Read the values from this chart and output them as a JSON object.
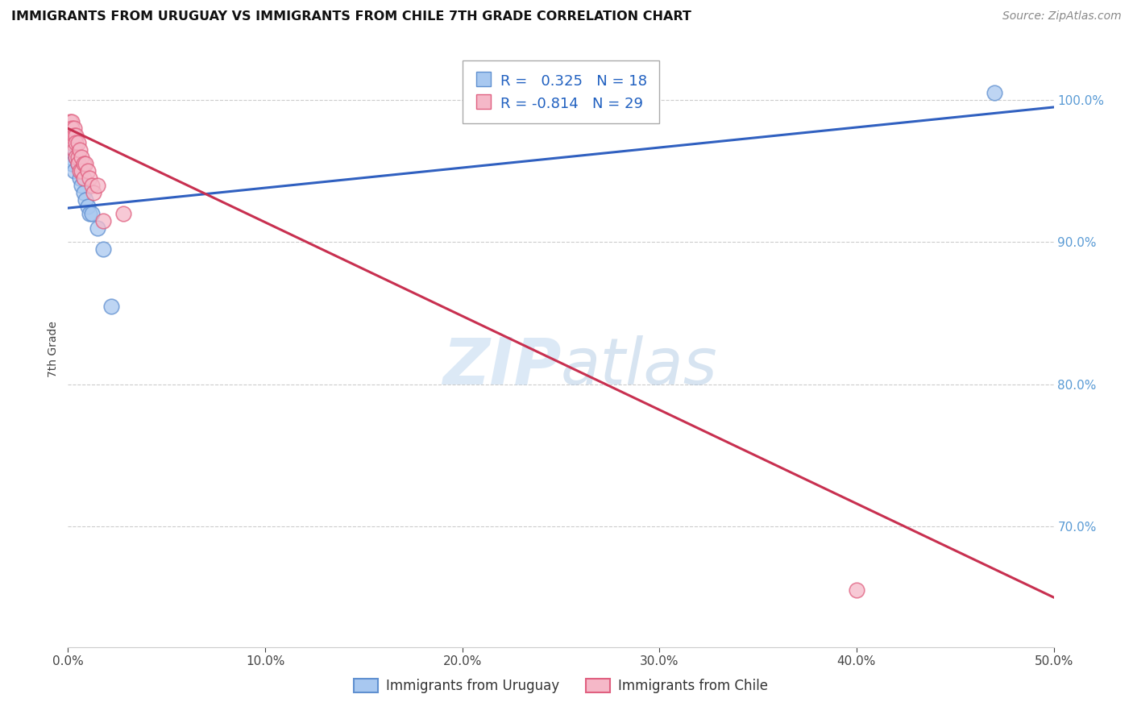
{
  "title": "IMMIGRANTS FROM URUGUAY VS IMMIGRANTS FROM CHILE 7TH GRADE CORRELATION CHART",
  "source": "Source: ZipAtlas.com",
  "ylabel_left": "7th Grade",
  "xlim": [
    0.0,
    0.5
  ],
  "ylim": [
    0.615,
    1.035
  ],
  "xticks": [
    0.0,
    0.1,
    0.2,
    0.3,
    0.4,
    0.5
  ],
  "xtick_labels": [
    "0.0%",
    "10.0%",
    "20.0%",
    "30.0%",
    "40.0%",
    "50.0%"
  ],
  "yticks_right": [
    0.7,
    0.8,
    0.9,
    1.0
  ],
  "ytick_labels_right": [
    "70.0%",
    "80.0%",
    "90.0%",
    "100.0%"
  ],
  "grid_color": "#cccccc",
  "background_color": "#ffffff",
  "uruguay_color": "#A8C8F0",
  "chile_color": "#F5B8C8",
  "uruguay_edge": "#6090D0",
  "chile_edge": "#E06080",
  "uruguay_R": 0.325,
  "uruguay_N": 18,
  "chile_R": -0.814,
  "chile_N": 29,
  "uruguay_line_color": "#3060C0",
  "chile_line_color": "#C83050",
  "watermark_zip": "ZIP",
  "watermark_atlas": "atlas",
  "legend_box_color": "#ffffff",
  "legend_border": "#aaaaaa",
  "uruguay_scatter_x": [
    0.001,
    0.002,
    0.002,
    0.003,
    0.003,
    0.004,
    0.005,
    0.006,
    0.007,
    0.008,
    0.009,
    0.01,
    0.011,
    0.012,
    0.015,
    0.018,
    0.022,
    0.47
  ],
  "uruguay_scatter_y": [
    0.96,
    0.97,
    0.955,
    0.965,
    0.95,
    0.96,
    0.955,
    0.945,
    0.94,
    0.935,
    0.93,
    0.925,
    0.92,
    0.92,
    0.91,
    0.895,
    0.855,
    1.005
  ],
  "chile_scatter_x": [
    0.001,
    0.001,
    0.002,
    0.002,
    0.002,
    0.003,
    0.003,
    0.003,
    0.004,
    0.004,
    0.004,
    0.005,
    0.005,
    0.005,
    0.006,
    0.006,
    0.007,
    0.007,
    0.008,
    0.008,
    0.009,
    0.01,
    0.011,
    0.012,
    0.013,
    0.015,
    0.018,
    0.028,
    0.4
  ],
  "chile_scatter_y": [
    0.985,
    0.975,
    0.985,
    0.98,
    0.97,
    0.98,
    0.975,
    0.965,
    0.975,
    0.97,
    0.96,
    0.97,
    0.96,
    0.955,
    0.965,
    0.95,
    0.96,
    0.95,
    0.955,
    0.945,
    0.955,
    0.95,
    0.945,
    0.94,
    0.935,
    0.94,
    0.915,
    0.92,
    0.655
  ],
  "legend_labels": [
    "Immigrants from Uruguay",
    "Immigrants from Chile"
  ],
  "uruguay_line_x0": 0.0,
  "uruguay_line_x1": 0.5,
  "uruguay_line_y0": 0.924,
  "uruguay_line_y1": 0.995,
  "chile_line_x0": 0.0,
  "chile_line_x1": 0.5,
  "chile_line_y0": 0.98,
  "chile_line_y1": 0.65
}
